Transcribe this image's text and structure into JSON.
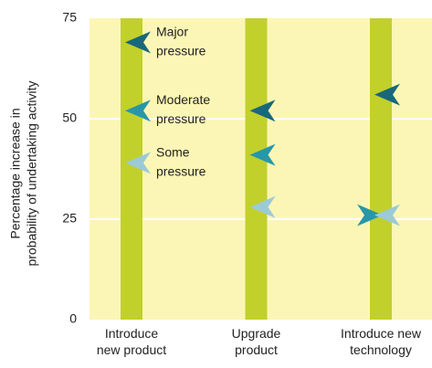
{
  "chart_data": {
    "type": "arrow-marker",
    "y_label": [
      "Percentage increase in",
      "probability of undertaking activity"
    ],
    "categories": [
      "Introduce\nnew product",
      "Upgrade\nproduct",
      "Introduce new\ntechnology"
    ],
    "series": [
      {
        "name": "Major pressure",
        "color": "#17687a",
        "values": [
          69,
          52,
          56
        ]
      },
      {
        "name": "Moderate pressure",
        "color": "#2797a8",
        "values": [
          52,
          41,
          26
        ]
      },
      {
        "name": "Some pressure",
        "color": "#9ccad6",
        "values": [
          39,
          28,
          26
        ]
      }
    ],
    "bar_color": "#c2d02c",
    "ylim": [
      0,
      75
    ],
    "yticks": [
      0,
      25,
      50,
      75
    ],
    "grid": true
  }
}
